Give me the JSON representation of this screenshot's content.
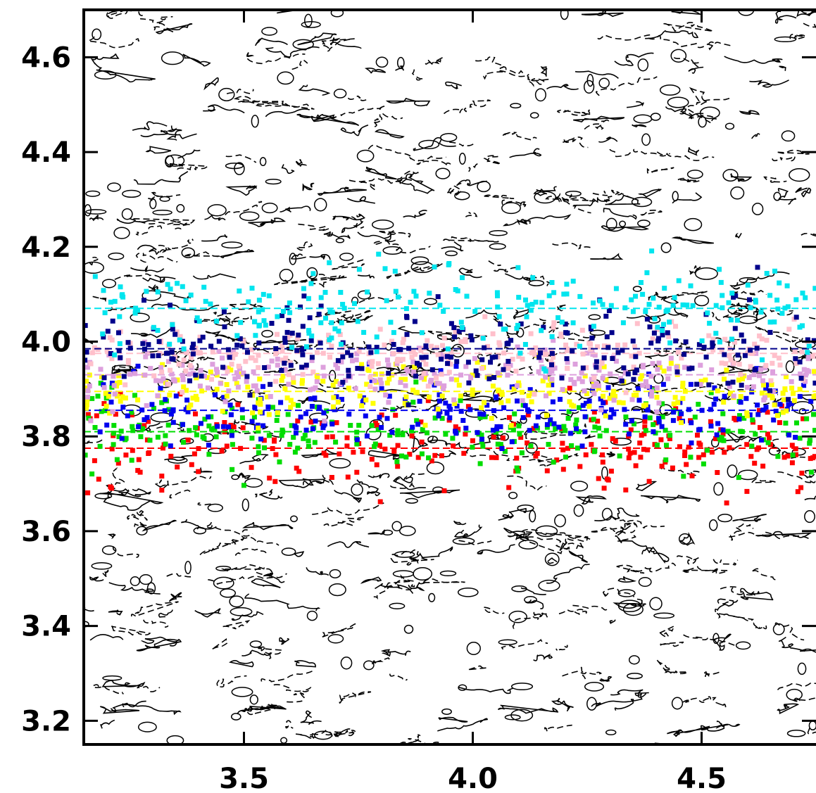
{
  "chart_data": {
    "type": "scatter",
    "title": "",
    "xlabel": "",
    "ylabel": "",
    "xlim": [
      3.15,
      4.75
    ],
    "ylim": [
      3.15,
      4.7
    ],
    "grid": false,
    "legend": "none",
    "background": "contour",
    "x_ticks": [
      {
        "value": 3.5,
        "label": "3.5"
      },
      {
        "value": 4.0,
        "label": "4.0"
      },
      {
        "value": 4.5,
        "label": "4.5"
      }
    ],
    "y_ticks": [
      {
        "value": 3.2,
        "label": "3.2"
      },
      {
        "value": 3.4,
        "label": "3.4"
      },
      {
        "value": 3.6,
        "label": "3.6"
      },
      {
        "value": 3.8,
        "label": "3.8"
      },
      {
        "value": 4.0,
        "label": "4.0"
      },
      {
        "value": 4.2,
        "label": "4.2"
      },
      {
        "value": 4.4,
        "label": "4.4"
      },
      {
        "value": 4.6,
        "label": "4.6"
      }
    ],
    "series": [
      {
        "color": "#ff0000",
        "center_y": 3.775,
        "spread": 0.045
      },
      {
        "color": "#00dd00",
        "center_y": 3.81,
        "spread": 0.04
      },
      {
        "color": "#0000ee",
        "center_y": 3.855,
        "spread": 0.035
      },
      {
        "color": "#ffff00",
        "center_y": 3.895,
        "spread": 0.03
      },
      {
        "color": "#dda0dd",
        "center_y": 3.93,
        "spread": 0.03
      },
      {
        "color": "#ffc0cb",
        "center_y": 3.975,
        "spread": 0.03
      },
      {
        "color": "#00008b",
        "center_y": 3.985,
        "spread": 0.05
      },
      {
        "color": "#00e5ee",
        "center_y": 4.07,
        "spread": 0.045
      }
    ]
  }
}
